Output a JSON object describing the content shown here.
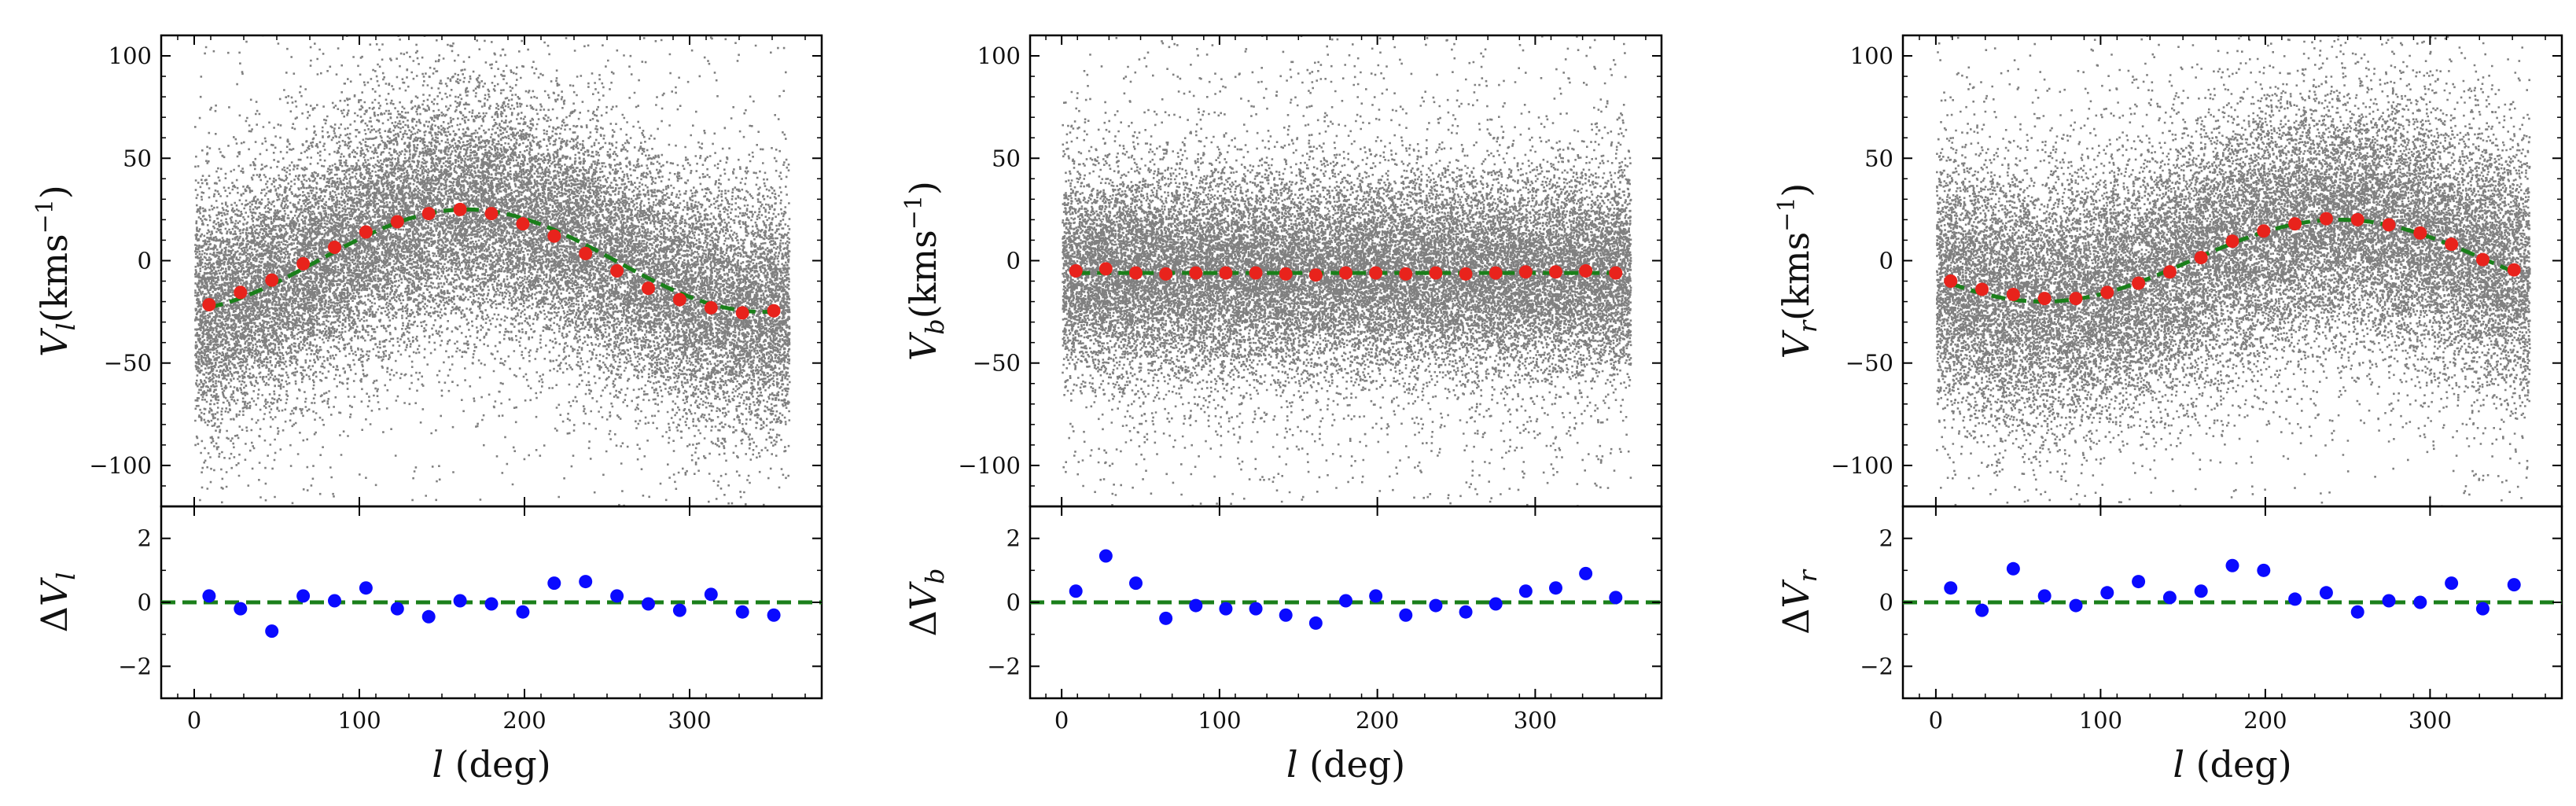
{
  "chart_data": [
    {
      "type": "scatter",
      "panel": "left",
      "ylabel": "V_l(kms^-1)",
      "ylabel_symbol": "V",
      "ylabel_sub": "l",
      "ylabel_units": "(kms",
      "ylabel_exp": "−1",
      "ylabel_close": ")",
      "xlabel_var": "l",
      "xlabel_units": " (deg)",
      "residual_ylabel": "ΔV",
      "residual_sub": "l",
      "xlim": [
        -20,
        380
      ],
      "ylim": [
        -120,
        110
      ],
      "residual_ylim": [
        -3,
        3
      ],
      "xticks": [
        0,
        100,
        200,
        300
      ],
      "yticks": [
        -100,
        -50,
        0,
        50,
        100
      ],
      "residual_yticks": [
        -2,
        0,
        2
      ],
      "scatter_model": {
        "mean_offset": 0,
        "amplitude": 25,
        "peak_l": 165,
        "spread": 28,
        "tail": 14,
        "color": "#808080"
      },
      "fit_curve": {
        "offset": 0,
        "amplitude": 25,
        "peak_l": 165,
        "color": "#1a7f1a",
        "style": "dashed"
      },
      "binned_points": {
        "color": "#e8231c",
        "x": [
          9,
          28,
          47,
          66,
          85,
          104,
          123,
          142,
          161,
          180,
          199,
          218,
          237,
          256,
          275,
          294,
          313,
          332,
          351
        ],
        "y": [
          -21.5,
          -15.5,
          -9.5,
          -1.5,
          6.5,
          14,
          19,
          23,
          25,
          23,
          18,
          12,
          3.5,
          -5,
          -13.5,
          -19,
          -23,
          -25.5,
          -24.5
        ]
      },
      "residuals": {
        "color": "#0a0aff",
        "x": [
          9,
          28,
          47,
          66,
          85,
          104,
          123,
          142,
          161,
          180,
          199,
          218,
          237,
          256,
          275,
          294,
          313,
          332,
          351
        ],
        "y": [
          0.2,
          -0.2,
          -0.9,
          0.2,
          0.05,
          0.45,
          -0.2,
          -0.45,
          0.05,
          -0.05,
          -0.3,
          0.6,
          0.65,
          0.2,
          -0.05,
          -0.25,
          0.25,
          -0.3,
          -0.4
        ]
      },
      "zero_line_color": "#1a7f1a"
    },
    {
      "type": "scatter",
      "panel": "middle",
      "ylabel": "V_b(kms^-1)",
      "ylabel_symbol": "V",
      "ylabel_sub": "b",
      "ylabel_units": "(kms",
      "ylabel_exp": "−1",
      "ylabel_close": ")",
      "xlabel_var": "l",
      "xlabel_units": " (deg)",
      "residual_ylabel": "ΔV",
      "residual_sub": "b",
      "xlim": [
        -20,
        380
      ],
      "ylim": [
        -120,
        110
      ],
      "residual_ylim": [
        -3,
        3
      ],
      "xticks": [
        0,
        100,
        200,
        300
      ],
      "yticks": [
        -100,
        -50,
        0,
        50,
        100
      ],
      "residual_yticks": [
        -2,
        0,
        2
      ],
      "scatter_model": {
        "mean_offset": -6,
        "amplitude": 0,
        "peak_l": 0,
        "spread": 24,
        "tail": 18,
        "color": "#808080"
      },
      "fit_curve": {
        "offset": -6,
        "amplitude": 0,
        "peak_l": 0,
        "color": "#1a7f1a",
        "style": "dashed"
      },
      "binned_points": {
        "color": "#e8231c",
        "x": [
          9,
          28,
          47,
          66,
          85,
          104,
          123,
          142,
          161,
          180,
          199,
          218,
          237,
          256,
          275,
          294,
          313,
          332,
          351
        ],
        "y": [
          -5,
          -4,
          -6,
          -6.5,
          -6,
          -6,
          -6,
          -6.5,
          -7,
          -6,
          -6,
          -6.5,
          -6,
          -6.5,
          -6,
          -5.5,
          -5.5,
          -5,
          -6
        ]
      },
      "residuals": {
        "color": "#0a0aff",
        "x": [
          9,
          28,
          47,
          66,
          85,
          104,
          123,
          142,
          161,
          180,
          199,
          218,
          237,
          256,
          275,
          294,
          313,
          332,
          351
        ],
        "y": [
          0.35,
          1.45,
          0.6,
          -0.5,
          -0.1,
          -0.2,
          -0.2,
          -0.4,
          -0.65,
          0.05,
          0.2,
          -0.4,
          -0.1,
          -0.3,
          -0.05,
          0.35,
          0.45,
          0.9,
          0.15
        ]
      },
      "zero_line_color": "#1a7f1a"
    },
    {
      "type": "scatter",
      "panel": "right",
      "ylabel": "V_r(kms^-1)",
      "ylabel_symbol": "V",
      "ylabel_sub": "r",
      "ylabel_units": "(kms",
      "ylabel_exp": "−1",
      "ylabel_close": ")",
      "xlabel_var": "l",
      "xlabel_units": " (deg)",
      "residual_ylabel": "ΔV",
      "residual_sub": "r",
      "xlim": [
        -20,
        380
      ],
      "ylim": [
        -120,
        110
      ],
      "residual_ylim": [
        -3,
        3
      ],
      "xticks": [
        0,
        100,
        200,
        300
      ],
      "yticks": [
        -100,
        -50,
        0,
        50,
        100
      ],
      "residual_yticks": [
        -2,
        0,
        2
      ],
      "scatter_model": {
        "mean_offset": 0,
        "amplitude": 20,
        "peak_l": 245,
        "spread": 30,
        "tail": 14,
        "color": "#808080"
      },
      "fit_curve": {
        "offset": 0,
        "amplitude": 20,
        "peak_l": 245,
        "color": "#1a7f1a",
        "style": "dashed"
      },
      "binned_points": {
        "color": "#e8231c",
        "x": [
          9,
          28,
          47,
          66,
          85,
          104,
          123,
          142,
          161,
          180,
          199,
          218,
          237,
          256,
          275,
          294,
          313,
          332,
          351
        ],
        "y": [
          -10,
          -14,
          -16.5,
          -18.5,
          -18.5,
          -15.5,
          -11,
          -5.5,
          1.5,
          9.5,
          14.5,
          18,
          20.5,
          20,
          17.5,
          13.5,
          8,
          0.5,
          -4.5
        ]
      },
      "residuals": {
        "color": "#0a0aff",
        "x": [
          9,
          28,
          47,
          66,
          85,
          104,
          123,
          142,
          161,
          180,
          199,
          218,
          237,
          256,
          275,
          294,
          313,
          332,
          351
        ],
        "y": [
          0.45,
          -0.25,
          1.05,
          0.2,
          -0.1,
          0.3,
          0.65,
          0.15,
          0.35,
          1.15,
          1.0,
          0.1,
          0.3,
          -0.3,
          0.05,
          0.0,
          0.6,
          -0.2,
          0.55
        ]
      },
      "zero_line_color": "#1a7f1a"
    }
  ]
}
